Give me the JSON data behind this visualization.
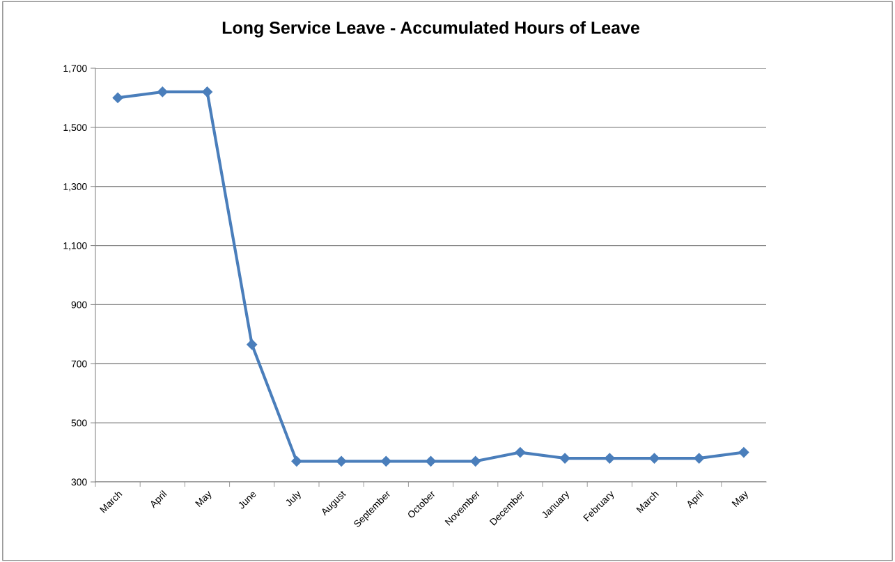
{
  "chart_data": {
    "type": "line",
    "title": "Long Service Leave - Accumulated Hours of Leave",
    "categories": [
      "March",
      "April",
      "May",
      "June",
      "July",
      "August",
      "September",
      "October",
      "November",
      "December",
      "January",
      "February",
      "March",
      "April",
      "May"
    ],
    "series": [
      {
        "color": "#4a7ebb",
        "values": [
          1600,
          1620,
          1620,
          765,
          370,
          370,
          370,
          370,
          370,
          400,
          380,
          380,
          380,
          380,
          400
        ]
      }
    ],
    "ylim": [
      300,
      1700
    ],
    "yticks": [
      {
        "value": 300,
        "label": "300"
      },
      {
        "value": 500,
        "label": "500"
      },
      {
        "value": 700,
        "label": "700"
      },
      {
        "value": 900,
        "label": "900"
      },
      {
        "value": 1100,
        "label": "1,100"
      },
      {
        "value": 1300,
        "label": "1,300"
      },
      {
        "value": 1500,
        "label": "1,500"
      },
      {
        "value": 1700,
        "label": "1,700"
      }
    ],
    "grid": "y",
    "marker": "diamond",
    "line_style": "solid",
    "legend": false
  }
}
